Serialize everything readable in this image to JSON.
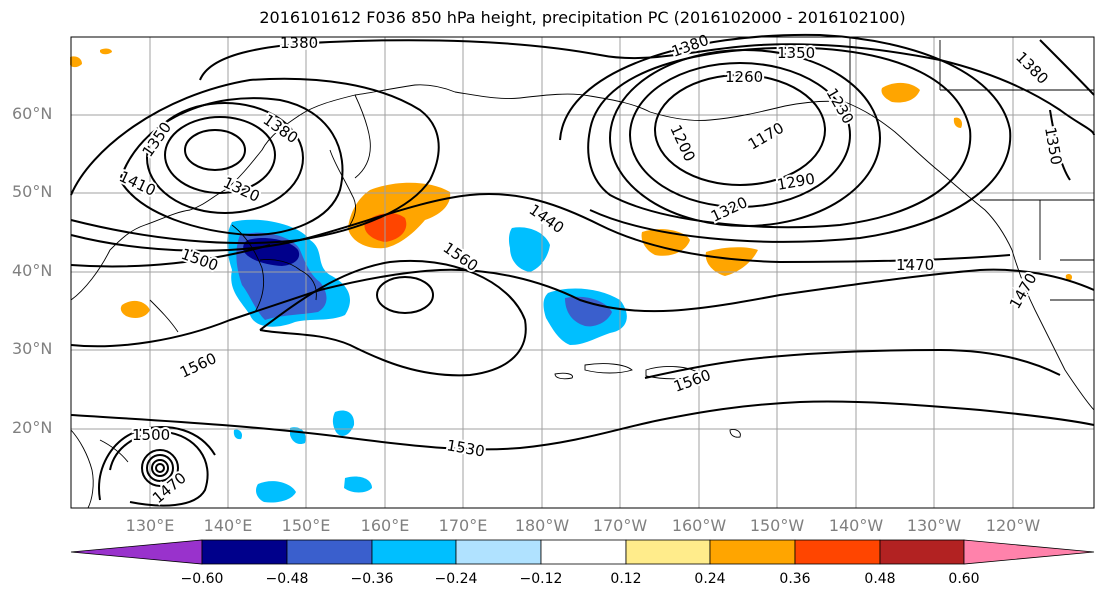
{
  "title": "2016101612 F036 850 hPa height, precipitation PC (2016102000 - 2016102100)",
  "lat_labels": [
    "60°N",
    "50°N",
    "40°N",
    "30°N",
    "20°N"
  ],
  "lon_labels": [
    "130°E",
    "140°E",
    "150°E",
    "160°E",
    "170°E",
    "180°W",
    "170°W",
    "160°W",
    "150°W",
    "140°W",
    "130°W",
    "120°W"
  ],
  "contour_labels": [
    "1380",
    "1350",
    "1380",
    "1410",
    "1320",
    "1380",
    "1350",
    "1260",
    "1230",
    "1380",
    "1350",
    "1200",
    "1170",
    "1290",
    "1320",
    "1440",
    "1500",
    "1560",
    "1470",
    "1470",
    "1560",
    "1560",
    "1500",
    "1530",
    "1470"
  ],
  "colorbar": {
    "ticks": [
      "−0.60",
      "−0.48",
      "−0.36",
      "−0.24",
      "−0.12",
      "0.12",
      "0.24",
      "0.36",
      "0.48",
      "0.60"
    ],
    "colors": [
      "#9932cc",
      "#00008b",
      "#3a5fcd",
      "#00bfff",
      "#b0e2ff",
      "#ffffff",
      "#ffec8b",
      "#ffa500",
      "#ff4500",
      "#b22222",
      "#ff82ab"
    ]
  }
}
